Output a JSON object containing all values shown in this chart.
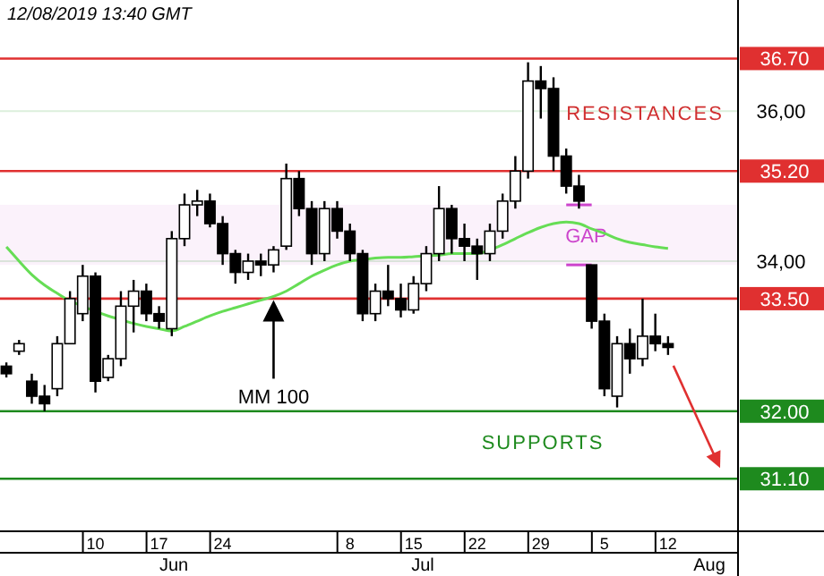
{
  "chart_data": {
    "type": "candlestick",
    "color": "#000000",
    "categories": [
      null,
      null,
      null,
      null,
      null,
      null,
      null,
      "10",
      null,
      null,
      null,
      null,
      "17",
      null,
      null,
      null,
      null,
      "24",
      null,
      null,
      null,
      null,
      null,
      null,
      null,
      null,
      null,
      "8",
      null,
      null,
      null,
      null,
      "15",
      null,
      null,
      null,
      null,
      "22",
      null,
      null,
      null,
      null,
      "29",
      null,
      null,
      null,
      null,
      "5",
      null,
      null,
      null,
      null,
      "12",
      null,
      null,
      null,
      null,
      null
    ],
    "ohlc": [
      [
        32.6,
        32.65,
        32.45,
        32.5
      ],
      [
        32.8,
        32.95,
        32.75,
        32.9
      ],
      [
        32.4,
        32.5,
        32.1,
        32.2
      ],
      [
        32.2,
        32.35,
        32.0,
        32.1
      ],
      [
        32.3,
        33.0,
        32.2,
        32.9
      ],
      [
        32.9,
        33.6,
        32.9,
        33.5
      ],
      [
        33.3,
        33.95,
        33.2,
        33.8
      ],
      [
        33.8,
        33.85,
        32.25,
        32.4
      ],
      [
        32.45,
        32.75,
        32.4,
        32.7
      ],
      [
        32.7,
        33.6,
        32.6,
        33.4
      ],
      [
        33.4,
        33.75,
        33.05,
        33.6
      ],
      [
        33.6,
        33.7,
        33.2,
        33.3
      ],
      [
        33.3,
        33.4,
        33.1,
        33.2
      ],
      [
        33.1,
        34.4,
        33.0,
        34.3
      ],
      [
        34.3,
        34.9,
        34.2,
        34.75
      ],
      [
        34.75,
        34.95,
        34.6,
        34.8
      ],
      [
        34.8,
        34.9,
        34.45,
        34.5
      ],
      [
        34.5,
        34.6,
        33.95,
        34.1
      ],
      [
        34.1,
        34.15,
        33.7,
        33.85
      ],
      [
        33.85,
        34.1,
        33.75,
        34.0
      ],
      [
        34.0,
        34.1,
        33.8,
        33.95
      ],
      [
        33.95,
        34.2,
        33.85,
        34.15
      ],
      [
        34.2,
        35.3,
        34.15,
        35.1
      ],
      [
        35.1,
        35.2,
        34.6,
        34.7
      ],
      [
        34.7,
        34.8,
        33.95,
        34.1
      ],
      [
        34.1,
        34.8,
        34.0,
        34.7
      ],
      [
        34.7,
        34.8,
        34.3,
        34.4
      ],
      [
        34.4,
        34.5,
        34.0,
        34.1
      ],
      [
        34.1,
        34.15,
        33.2,
        33.3
      ],
      [
        33.3,
        33.7,
        33.2,
        33.6
      ],
      [
        33.6,
        33.95,
        33.4,
        33.5
      ],
      [
        33.5,
        33.7,
        33.25,
        33.35
      ],
      [
        33.35,
        33.8,
        33.3,
        33.7
      ],
      [
        33.7,
        34.2,
        33.6,
        34.1
      ],
      [
        34.1,
        35.0,
        34.0,
        34.7
      ],
      [
        34.7,
        34.75,
        34.1,
        34.3
      ],
      [
        34.3,
        34.5,
        34.0,
        34.2
      ],
      [
        34.2,
        34.3,
        33.75,
        34.1
      ],
      [
        34.1,
        34.5,
        34.0,
        34.4
      ],
      [
        34.4,
        34.9,
        34.3,
        34.8
      ],
      [
        34.8,
        35.4,
        34.7,
        35.2
      ],
      [
        35.2,
        36.65,
        35.1,
        36.4
      ],
      [
        36.4,
        36.6,
        35.9,
        36.3
      ],
      [
        36.3,
        36.45,
        35.2,
        35.4
      ],
      [
        35.4,
        35.5,
        34.9,
        35.0
      ],
      [
        35.0,
        35.15,
        34.7,
        34.8
      ],
      [
        33.95,
        33.95,
        33.1,
        33.2
      ],
      [
        33.2,
        33.3,
        32.2,
        32.3
      ],
      [
        32.2,
        33.0,
        32.05,
        32.9
      ],
      [
        32.9,
        33.1,
        32.5,
        32.7
      ],
      [
        32.7,
        33.5,
        32.6,
        33.0
      ],
      [
        33.0,
        33.3,
        32.8,
        32.9
      ],
      [
        32.9,
        33.0,
        32.75,
        32.85
      ],
      null,
      null,
      null,
      null,
      null
    ],
    "series": [
      {
        "type": "line",
        "name": "MM 100",
        "color": "#66dd55",
        "values": [
          34.19,
          34.0,
          33.82,
          33.68,
          33.57,
          33.47,
          33.4,
          33.33,
          33.27,
          33.22,
          33.17,
          33.13,
          33.1,
          33.07,
          33.13,
          33.2,
          33.27,
          33.33,
          33.38,
          33.43,
          33.48,
          33.53,
          33.6,
          33.7,
          33.8,
          33.88,
          33.95,
          34.0,
          34.02,
          34.04,
          34.05,
          34.05,
          34.06,
          34.07,
          34.08,
          34.1,
          34.1,
          34.1,
          34.15,
          34.22,
          34.3,
          34.38,
          34.45,
          34.5,
          34.52,
          34.5,
          34.43,
          34.37,
          34.3,
          34.25,
          34.22,
          34.19,
          34.17,
          null,
          null,
          null,
          null,
          null
        ]
      }
    ],
    "ylim": [
      30.4,
      37.48
    ],
    "yticks": [
      {
        "value": 34,
        "label": "34,00"
      },
      {
        "value": 36,
        "label": "36,00"
      }
    ],
    "grid": "y",
    "legend": false,
    "ref_lines": [
      {
        "axis": "y",
        "value": 36.7,
        "label": "36.70",
        "color": "#e03030"
      },
      {
        "axis": "y",
        "value": 35.2,
        "label": "35.20",
        "color": "#e03030"
      },
      {
        "axis": "y",
        "value": 33.5,
        "label": "33.50",
        "color": "#e03030"
      },
      {
        "axis": "y",
        "value": 32.0,
        "label": "32.00",
        "color": "#1e8a1e"
      },
      {
        "axis": "y",
        "value": 31.1,
        "label": "31.10",
        "color": "#1e8a1e"
      }
    ],
    "bands": [
      {
        "axis": "y",
        "from": 33.95,
        "to": 34.75,
        "label": "GAP",
        "color": "#cc44cc"
      }
    ],
    "annotations": [
      "12/08/2019 13:40 GMT",
      "RESISTANCES",
      "SUPPORTS",
      "Jun",
      "Jul",
      "Aug"
    ]
  }
}
